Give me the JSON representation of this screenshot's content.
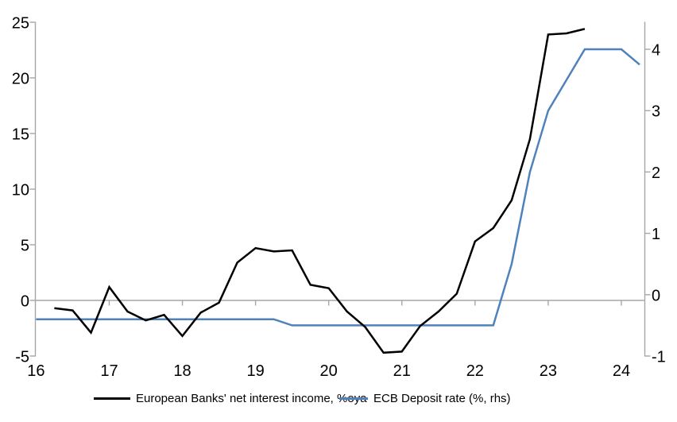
{
  "chart_data": {
    "type": "line",
    "title": "",
    "x_axis": {
      "start_year": 2016,
      "tick_labels": [
        "16",
        "17",
        "18",
        "19",
        "20",
        "21",
        "22",
        "23",
        "24"
      ],
      "unit": "year (quarterly data)"
    },
    "left_axis": {
      "tick_labels": [
        "25",
        "20",
        "15",
        "10",
        "5",
        "0",
        "-5"
      ],
      "min": -5,
      "max": 25
    },
    "right_axis": {
      "tick_labels": [
        "4",
        "3",
        "2",
        "1",
        "0",
        "-1"
      ],
      "min": -1,
      "max": 4
    },
    "grid": "horizontal zero line only",
    "legend_position": "bottom",
    "series": [
      {
        "name": "European Banks' net interest income, %oya",
        "axis": "left",
        "color": "#000000",
        "x": [
          2016.25,
          2016.5,
          2016.75,
          2017.0,
          2017.25,
          2017.5,
          2017.75,
          2018.0,
          2018.25,
          2018.5,
          2018.75,
          2019.0,
          2019.25,
          2019.5,
          2019.75,
          2020.0,
          2020.25,
          2020.5,
          2020.75,
          2021.0,
          2021.25,
          2021.5,
          2021.75,
          2022.0,
          2022.25,
          2022.5,
          2022.75,
          2023.0,
          2023.25,
          2023.5
        ],
        "values": [
          -0.7,
          -0.9,
          -2.9,
          1.2,
          -1.0,
          -1.8,
          -1.3,
          -3.2,
          -1.1,
          -0.2,
          3.4,
          4.7,
          4.4,
          4.5,
          1.4,
          1.1,
          -1.0,
          -2.4,
          -4.7,
          -4.6,
          -2.3,
          -1.0,
          0.6,
          5.3,
          6.5,
          9.0,
          14.5,
          23.9,
          24.0,
          24.4
        ]
      },
      {
        "name": "ECB Deposit rate (%, rhs)",
        "axis": "right",
        "color": "#4f82bc",
        "x": [
          2016.0,
          2016.25,
          2016.5,
          2016.75,
          2017.0,
          2017.25,
          2017.5,
          2017.75,
          2018.0,
          2018.25,
          2018.5,
          2018.75,
          2019.0,
          2019.25,
          2019.5,
          2019.75,
          2020.0,
          2020.25,
          2020.5,
          2020.75,
          2021.0,
          2021.25,
          2021.5,
          2021.75,
          2022.0,
          2022.25,
          2022.5,
          2022.75,
          2023.0,
          2023.25,
          2023.5,
          2023.75,
          2024.0,
          2024.25
        ],
        "values": [
          -0.4,
          -0.4,
          -0.4,
          -0.4,
          -0.4,
          -0.4,
          -0.4,
          -0.4,
          -0.4,
          -0.4,
          -0.4,
          -0.4,
          -0.4,
          -0.4,
          -0.5,
          -0.5,
          -0.5,
          -0.5,
          -0.5,
          -0.5,
          -0.5,
          -0.5,
          -0.5,
          -0.5,
          -0.5,
          -0.5,
          0.5,
          2.0,
          3.0,
          3.5,
          4.0,
          4.0,
          4.0,
          3.75
        ]
      }
    ]
  }
}
